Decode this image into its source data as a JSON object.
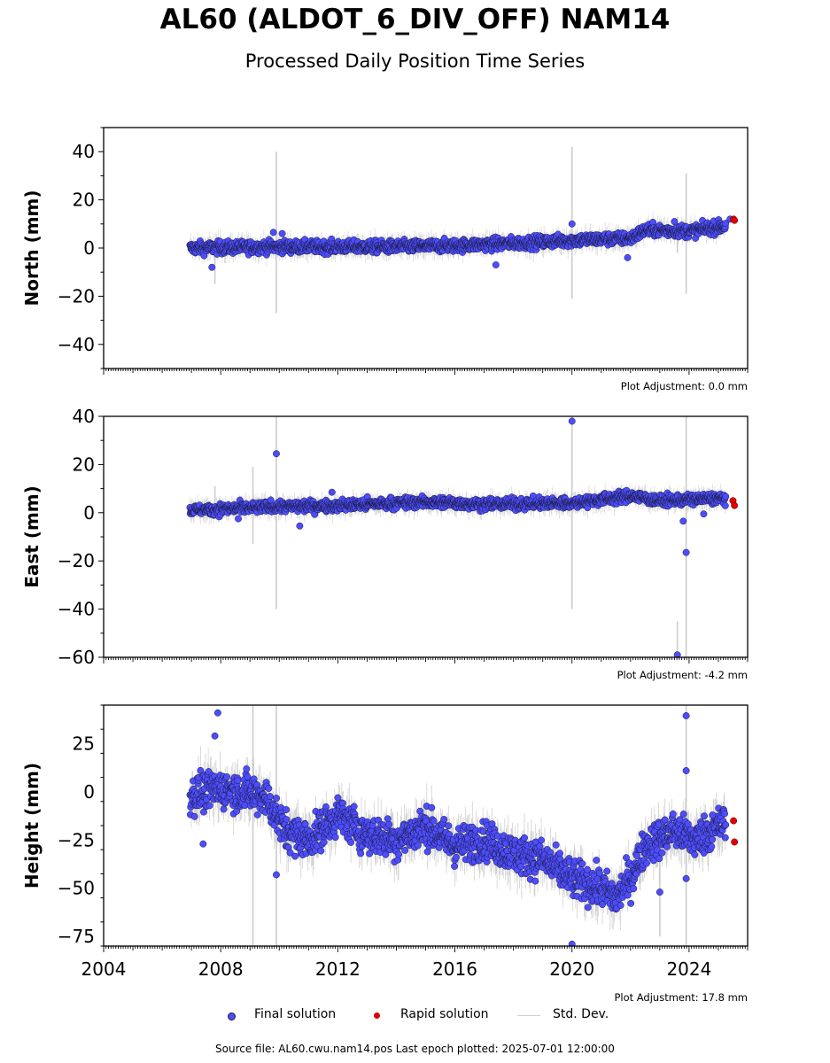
{
  "title": "AL60 (ALDOT_6_DIV_OFF) NAM14",
  "subtitle": "Processed Daily Position Time Series",
  "colors": {
    "final": "#4d4dff",
    "rapid": "#e00000",
    "stddev": "#cccccc",
    "edge": "#1a1a3a"
  },
  "legend": {
    "final": "Final solution",
    "rapid": "Rapid solution",
    "stddev": "Std. Dev."
  },
  "source": "Source file: AL60.cwu.nam14.pos  Last epoch plotted: 2025-07-01 12:00:00",
  "chart_data": [
    {
      "type": "scatter",
      "ylabel": "North (mm)",
      "xlim": [
        2004,
        2026
      ],
      "ylim": [
        -50,
        50
      ],
      "yticks": [
        -40,
        -20,
        0,
        20,
        40
      ],
      "xticks": [],
      "adjustment": "Plot Adjustment: 0.0 mm",
      "trend": [
        [
          2006.9,
          0
        ],
        [
          2010,
          0.5
        ],
        [
          2014,
          0.5
        ],
        [
          2016,
          1
        ],
        [
          2018,
          2
        ],
        [
          2020.5,
          3.5
        ],
        [
          2022,
          4
        ],
        [
          2022.5,
          7.5
        ],
        [
          2024,
          7
        ],
        [
          2025.2,
          9
        ]
      ],
      "noise": 1.8,
      "outliers": [
        [
          2007.7,
          -8
        ],
        [
          2009.8,
          6.5
        ],
        [
          2010.1,
          6
        ],
        [
          2017.4,
          -7
        ],
        [
          2020.0,
          10
        ],
        [
          2021.9,
          -4
        ],
        [
          2023.5,
          11
        ],
        [
          2025.4,
          12
        ]
      ],
      "bigerr": [
        [
          2009.9,
          -27,
          40
        ],
        [
          2020.0,
          -21,
          42
        ],
        [
          2023.9,
          -19,
          31
        ],
        [
          2023.6,
          -2,
          13
        ],
        [
          2007.8,
          -15,
          2
        ]
      ],
      "rapid": [
        [
          2025.52,
          12
        ],
        [
          2025.55,
          11.5
        ]
      ]
    },
    {
      "type": "scatter",
      "ylabel": "East (mm)",
      "xlim": [
        2004,
        2026
      ],
      "ylim": [
        -60,
        40
      ],
      "yticks": [
        -60,
        -40,
        -20,
        0,
        20,
        40
      ],
      "xticks": [],
      "adjustment": "Plot Adjustment: -4.2 mm",
      "trend": [
        [
          2006.9,
          1
        ],
        [
          2010,
          2.5
        ],
        [
          2012,
          3
        ],
        [
          2015,
          4.5
        ],
        [
          2017,
          3.5
        ],
        [
          2020,
          4
        ],
        [
          2022,
          7
        ],
        [
          2023,
          5
        ],
        [
          2025.2,
          6
        ]
      ],
      "noise": 1.6,
      "outliers": [
        [
          2009.9,
          24.5
        ],
        [
          2020.0,
          38
        ],
        [
          2010.7,
          -5.5
        ],
        [
          2011.8,
          8.5
        ],
        [
          2008.6,
          -2.5
        ],
        [
          2023.8,
          -3.5
        ],
        [
          2023.9,
          -16.5
        ],
        [
          2023.6,
          -59
        ],
        [
          2024.5,
          -0.5
        ]
      ],
      "bigerr": [
        [
          2009.9,
          -40,
          40
        ],
        [
          2020.0,
          -40,
          40
        ],
        [
          2023.9,
          -60,
          40
        ],
        [
          2023.6,
          -60,
          -45
        ],
        [
          2009.1,
          -13,
          19
        ],
        [
          2007.8,
          -2,
          11
        ]
      ],
      "rapid": [
        [
          2025.5,
          5
        ],
        [
          2025.55,
          3
        ]
      ]
    },
    {
      "type": "scatter",
      "ylabel": "Height (mm)",
      "xlim": [
        2004,
        2026
      ],
      "ylim": [
        -80,
        45
      ],
      "yticks": [
        -75,
        -50,
        -25,
        0,
        25
      ],
      "xticks": [
        2004,
        2008,
        2012,
        2016,
        2020,
        2024
      ],
      "adjustment": "Plot Adjustment: 17.8 mm",
      "trend": [
        [
          2006.9,
          -2
        ],
        [
          2008,
          2
        ],
        [
          2009.5,
          -2
        ],
        [
          2010.2,
          -20
        ],
        [
          2011,
          -25
        ],
        [
          2012,
          -12
        ],
        [
          2013,
          -22
        ],
        [
          2014,
          -25
        ],
        [
          2015,
          -18
        ],
        [
          2016,
          -28
        ],
        [
          2017,
          -25
        ],
        [
          2018,
          -32
        ],
        [
          2019,
          -35
        ],
        [
          2020,
          -45
        ],
        [
          2021,
          -50
        ],
        [
          2021.5,
          -55
        ],
        [
          2022,
          -45
        ],
        [
          2022.5,
          -28
        ],
        [
          2023.5,
          -20
        ],
        [
          2024.2,
          -25
        ],
        [
          2025.2,
          -16
        ]
      ],
      "noise": 7,
      "outliers": [
        [
          2007.9,
          41
        ],
        [
          2007.8,
          29
        ],
        [
          2009.9,
          -43
        ],
        [
          2020.0,
          -79
        ],
        [
          2023.9,
          39.5
        ],
        [
          2023.9,
          11
        ],
        [
          2023.9,
          -45
        ],
        [
          2023.0,
          -52
        ],
        [
          2024.8,
          -12
        ],
        [
          2007.4,
          -27
        ]
      ],
      "bigerr": [
        [
          2009.9,
          -80,
          45
        ],
        [
          2009.1,
          -80,
          45
        ],
        [
          2023.9,
          -80,
          45
        ],
        [
          2023.0,
          -75,
          -20
        ]
      ],
      "rapid": [
        [
          2025.52,
          -15
        ],
        [
          2025.55,
          -26
        ]
      ]
    }
  ]
}
